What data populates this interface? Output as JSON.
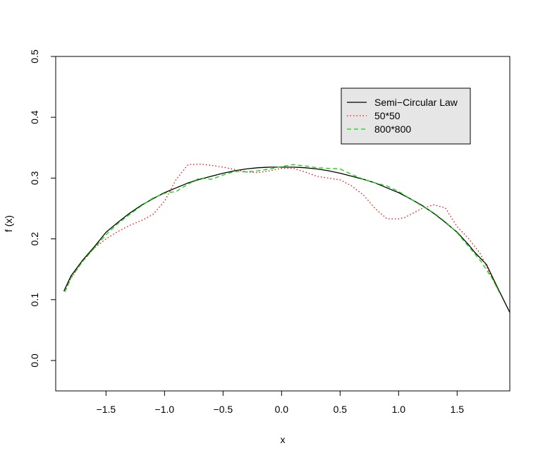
{
  "chart_data": {
    "type": "line",
    "title": "",
    "xlabel": "x",
    "ylabel": "f (x)",
    "xlim": [
      -1.93,
      1.95
    ],
    "ylim": [
      -0.05,
      0.5
    ],
    "xticks": [
      -1.5,
      -1.0,
      -0.5,
      0.0,
      0.5,
      1.0,
      1.5
    ],
    "xtick_labels": [
      "−1.5",
      "−1.0",
      "−0.5",
      "0.0",
      "0.5",
      "1.0",
      "1.5"
    ],
    "yticks": [
      0.0,
      0.1,
      0.2,
      0.3,
      0.4,
      0.5
    ],
    "ytick_labels": [
      "0.0",
      "0.1",
      "0.2",
      "0.3",
      "0.4",
      "0.5"
    ],
    "grid": false,
    "legend_position": "top-right",
    "series": [
      {
        "name": "Semi−Circular Law",
        "color": "#000000",
        "dash": "solid",
        "x": [
          -1.86,
          -1.8,
          -1.7,
          -1.6,
          -1.5,
          -1.4,
          -1.3,
          -1.2,
          -1.1,
          -1.0,
          -0.9,
          -0.8,
          -0.7,
          -0.6,
          -0.5,
          -0.4,
          -0.3,
          -0.2,
          -0.1,
          0.0,
          0.1,
          0.2,
          0.3,
          0.4,
          0.5,
          0.6,
          0.7,
          0.8,
          0.9,
          1.0,
          1.1,
          1.2,
          1.3,
          1.4,
          1.5,
          1.6,
          1.65,
          1.75,
          1.85,
          1.95
        ],
        "y": [
          0.114,
          0.139,
          0.165,
          0.187,
          0.211,
          0.227,
          0.242,
          0.255,
          0.266,
          0.276,
          0.284,
          0.292,
          0.298,
          0.303,
          0.308,
          0.312,
          0.315,
          0.317,
          0.318,
          0.318,
          0.318,
          0.317,
          0.315,
          0.312,
          0.308,
          0.303,
          0.298,
          0.292,
          0.284,
          0.276,
          0.266,
          0.255,
          0.242,
          0.227,
          0.211,
          0.19,
          0.178,
          0.158,
          0.118,
          0.079
        ]
      },
      {
        "name": "50*50",
        "color": "#ff0000",
        "dash": "dotted",
        "x": [
          -1.85,
          -1.8,
          -1.7,
          -1.6,
          -1.5,
          -1.4,
          -1.3,
          -1.2,
          -1.1,
          -1.0,
          -0.9,
          -0.8,
          -0.7,
          -0.6,
          -0.5,
          -0.4,
          -0.3,
          -0.2,
          -0.1,
          0.0,
          0.1,
          0.2,
          0.3,
          0.4,
          0.5,
          0.6,
          0.7,
          0.8,
          0.9,
          1.0,
          1.05,
          1.1,
          1.2,
          1.3,
          1.4,
          1.5,
          1.6,
          1.7,
          1.8,
          1.86
        ],
        "y": [
          0.113,
          0.135,
          0.163,
          0.185,
          0.2,
          0.212,
          0.222,
          0.23,
          0.24,
          0.262,
          0.298,
          0.322,
          0.323,
          0.321,
          0.318,
          0.314,
          0.31,
          0.309,
          0.312,
          0.316,
          0.316,
          0.31,
          0.303,
          0.3,
          0.297,
          0.287,
          0.272,
          0.25,
          0.233,
          0.233,
          0.235,
          0.24,
          0.25,
          0.256,
          0.251,
          0.22,
          0.2,
          0.175,
          0.135,
          0.113
        ]
      },
      {
        "name": "800*800",
        "color": "#00dd00",
        "dash": "dashed",
        "x": [
          -1.85,
          -1.8,
          -1.7,
          -1.6,
          -1.5,
          -1.4,
          -1.3,
          -1.2,
          -1.1,
          -1.0,
          -0.9,
          -0.8,
          -0.7,
          -0.6,
          -0.5,
          -0.4,
          -0.3,
          -0.2,
          -0.1,
          0.0,
          0.1,
          0.2,
          0.3,
          0.4,
          0.5,
          0.6,
          0.7,
          0.8,
          0.9,
          1.0,
          1.1,
          1.2,
          1.3,
          1.4,
          1.5,
          1.6,
          1.7,
          1.8,
          1.86
        ],
        "y": [
          0.113,
          0.136,
          0.163,
          0.185,
          0.207,
          0.225,
          0.24,
          0.254,
          0.267,
          0.275,
          0.278,
          0.29,
          0.3,
          0.298,
          0.305,
          0.311,
          0.31,
          0.312,
          0.315,
          0.319,
          0.322,
          0.32,
          0.317,
          0.316,
          0.315,
          0.306,
          0.298,
          0.292,
          0.287,
          0.278,
          0.266,
          0.254,
          0.243,
          0.228,
          0.21,
          0.187,
          0.164,
          0.135,
          0.112
        ]
      }
    ]
  }
}
